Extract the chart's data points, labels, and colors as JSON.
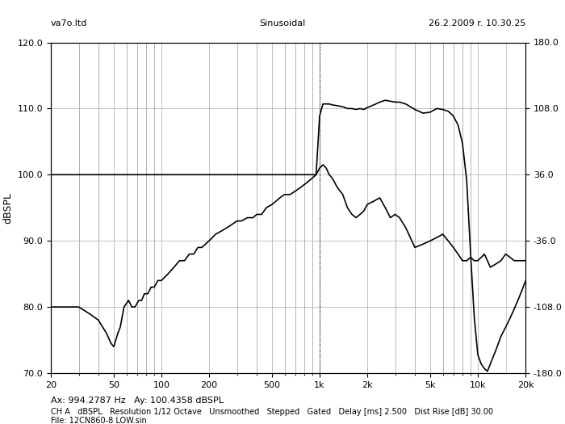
{
  "title_left": "va7o.ltd",
  "title_center": "Sinusoidal",
  "title_right": "26.2.2009 r. 10.30.25",
  "ylabel_left": "dBSPL",
  "xlabel": "",
  "annotation_ax": "Ax: 994.2787 Hz   Ay: 100.4358 dBSPL",
  "footer_line1": "CH A   dBSPL   Resolution 1/12 Octave   Unsmoothed   Stepped   Gated   Delay [ms] 2.500   Dist Rise [dB] 30.00",
  "footer_line2": "File: 12CN860-8 LOW.sin",
  "ylim_left": [
    70.0,
    120.0
  ],
  "ylim_right": [
    -180.0,
    180.0
  ],
  "xlim": [
    20,
    20000
  ],
  "yticks_left": [
    70.0,
    80.0,
    90.0,
    100.0,
    110.0,
    120.0
  ],
  "yticks_right": [
    -180.0,
    -108.0,
    -36.0,
    36.0,
    108.0,
    180.0
  ],
  "xticks": [
    20,
    50,
    100,
    200,
    500,
    1000,
    2000,
    5000,
    10000,
    20000
  ],
  "xtick_labels": [
    "20",
    "50",
    "100",
    "200",
    "500",
    "1k",
    "2k",
    "5k",
    "10k",
    "20k"
  ],
  "dotted_vline_x": 1000,
  "bg_color": "#f0f0f0",
  "line_color": "#000000",
  "grid_color": "#aaaaaa",
  "spl_curve": {
    "freq": [
      20,
      25,
      30,
      35,
      40,
      45,
      48,
      50,
      53,
      55,
      58,
      62,
      65,
      68,
      72,
      75,
      78,
      82,
      86,
      90,
      95,
      100,
      110,
      120,
      130,
      140,
      150,
      160,
      170,
      180,
      190,
      200,
      220,
      240,
      260,
      280,
      300,
      320,
      350,
      380,
      400,
      430,
      460,
      500,
      530,
      560,
      600,
      650,
      700,
      750,
      800,
      850,
      900,
      950,
      1000,
      1050,
      1100,
      1150,
      1200,
      1300,
      1400,
      1500,
      1600,
      1700,
      1800,
      1900,
      2000,
      2200,
      2400,
      2600,
      2800,
      3000,
      3200,
      3500,
      4000,
      4500,
      5000,
      5500,
      6000,
      6500,
      7000,
      7500,
      8000,
      8500,
      9000,
      9500,
      10000,
      10500,
      11000,
      11500,
      12000,
      13000,
      14000,
      15000,
      16000,
      17000,
      18000,
      19000,
      20000
    ],
    "spl": [
      80,
      80,
      80,
      79,
      78,
      76,
      74.5,
      74,
      76,
      77,
      80,
      81,
      80,
      80,
      81,
      81,
      82,
      82,
      83,
      83,
      84,
      84,
      85,
      86,
      87,
      87,
      88,
      88,
      89,
      89,
      89.5,
      90,
      91,
      91.5,
      92,
      92.5,
      93,
      93,
      93.5,
      93.5,
      94,
      94,
      95,
      95.5,
      96,
      96.5,
      97,
      97,
      97.5,
      98,
      98.5,
      99,
      99.5,
      100,
      101,
      101.5,
      101,
      100,
      99.5,
      98,
      97,
      95,
      94,
      93.5,
      94,
      94.5,
      95.5,
      96,
      96.5,
      95,
      93.5,
      94,
      93.5,
      92,
      89,
      89.5,
      90,
      90.5,
      91,
      90,
      89,
      88,
      87,
      87,
      87.5,
      87,
      87,
      87.5,
      88,
      87,
      86,
      86.5,
      87,
      88,
      87.5,
      87,
      87,
      87,
      87
    ]
  },
  "phase_curve": {
    "freq": [
      20,
      25,
      30,
      35,
      40,
      45,
      48,
      50,
      53,
      55,
      58,
      62,
      65,
      68,
      72,
      75,
      78,
      82,
      86,
      90,
      95,
      100,
      110,
      120,
      130,
      140,
      150,
      160,
      170,
      180,
      190,
      200,
      220,
      240,
      260,
      280,
      300,
      320,
      350,
      380,
      400,
      430,
      460,
      500,
      530,
      560,
      600,
      650,
      700,
      750,
      800,
      850,
      900,
      950,
      1000,
      1050,
      1100,
      1150,
      1200,
      1300,
      1400,
      1500,
      1600,
      1700,
      1800,
      1900,
      2000,
      2200,
      2400,
      2600,
      2800,
      3000,
      3200,
      3500,
      4000,
      4500,
      5000,
      5500,
      6000,
      6500,
      7000,
      7500,
      8000,
      8500,
      9000,
      9500,
      10000,
      10500,
      11000,
      11500,
      12000,
      13000,
      14000,
      15000,
      16000,
      17000,
      18000,
      19000,
      20000
    ],
    "phase": [
      36,
      36,
      36,
      36,
      36,
      36,
      36,
      36,
      36,
      36,
      36,
      36,
      36,
      36,
      36,
      36,
      36,
      36,
      36,
      36,
      36,
      36,
      36,
      36,
      36,
      36,
      36,
      36,
      36,
      36,
      36,
      36,
      36,
      36,
      36,
      36,
      36,
      36,
      36,
      36,
      36,
      36,
      36,
      36,
      36,
      36,
      36,
      36,
      36,
      36,
      36,
      36,
      36,
      36,
      100,
      113,
      113,
      113,
      112,
      111,
      110,
      108,
      108,
      107,
      108,
      107,
      109,
      112,
      115,
      117,
      116,
      115,
      115,
      113,
      107,
      103,
      104,
      108,
      107,
      105,
      100,
      90,
      70,
      30,
      -50,
      -120,
      -160,
      -170,
      -175,
      -178,
      -170,
      -155,
      -140,
      -130,
      -120,
      -110,
      -100,
      -90,
      -80
    ]
  }
}
